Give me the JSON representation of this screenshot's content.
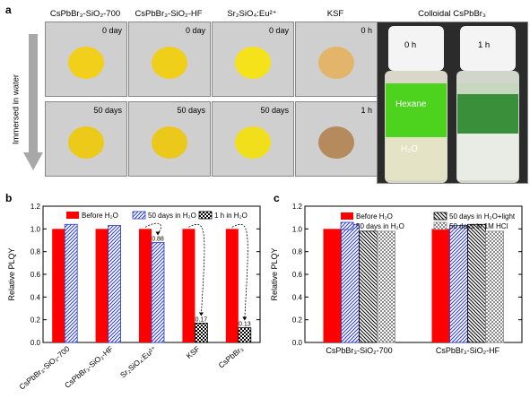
{
  "panels": {
    "a": "a",
    "b": "b",
    "c": "c"
  },
  "photo_grid": {
    "columns": [
      {
        "label": "CsPbBr₃-SiO₂-700",
        "t0": "0 day",
        "t1": "50 days",
        "color0": "#f2cf1a",
        "color1": "#edc91a"
      },
      {
        "label": "CsPbBr₃-SiO₂-HF",
        "t0": "0 day",
        "t1": "50 days",
        "color0": "#f0cf1a",
        "color1": "#ecc81a"
      },
      {
        "label": "Sr₂SiO₄:Eu²⁺",
        "t0": "0 day",
        "t1": "50 days",
        "color0": "#f5e21a",
        "color1": "#f2df1c"
      },
      {
        "label": "KSF",
        "t0": "0 h",
        "t1": "1 h",
        "color0": "#e3b56a",
        "color1": "#b58a5c"
      }
    ],
    "arrow_label": "Immersed in water",
    "colloidal": {
      "label": "Colloidal CsPbBr₃",
      "t0": "0 h",
      "t1": "1 h",
      "hexane": "Hexane",
      "water": "H₂O"
    }
  },
  "chart_data": [
    {
      "type": "bar",
      "ylabel": "Relative PLQY",
      "ylim": [
        0,
        1.2
      ],
      "yticks": [
        0.0,
        0.2,
        0.4,
        0.6,
        0.8,
        1.0,
        1.2
      ],
      "categories": [
        "CsPbBr₃-SiO₂-700",
        "CsPbBr₃-SiO₂-HF",
        "Sr₂SiO₄:Eu²⁺",
        "KSF",
        "CsPbBr₃"
      ],
      "series": [
        {
          "name": "Before H₂O",
          "values": [
            1.0,
            1.0,
            1.0,
            1.0,
            1.0
          ],
          "color": "#ff0000",
          "pattern": "solid"
        },
        {
          "name": "50 days in H₂O",
          "values": [
            1.04,
            1.03,
            0.88,
            null,
            null
          ],
          "color": "#2a3ad0",
          "pattern": "diag"
        },
        {
          "name": "1 h in H₂O",
          "values": [
            null,
            null,
            null,
            0.17,
            0.13
          ],
          "color": "#000000",
          "pattern": "check"
        }
      ],
      "data_labels": [
        "0.88",
        "0.17",
        "0.13"
      ]
    },
    {
      "type": "bar",
      "ylabel": "Relative PLQY",
      "ylim": [
        0,
        1.2
      ],
      "yticks": [
        0.0,
        0.2,
        0.4,
        0.6,
        0.8,
        1.0,
        1.2
      ],
      "categories": [
        "CsPbBr₃-SiO₂-700",
        "CsPbBr₃-SiO₂-HF"
      ],
      "series": [
        {
          "name": "Before H₂O",
          "values": [
            1.0,
            1.0
          ],
          "color": "#ff0000",
          "pattern": "solid"
        },
        {
          "name": "50 days in H₂O",
          "values": [
            1.04,
            1.03
          ],
          "color": "#2a3ad0",
          "pattern": "diag"
        },
        {
          "name": "50 days in H₂O+light",
          "values": [
            0.98,
            1.04
          ],
          "color": "#000000",
          "pattern": "diagrev"
        },
        {
          "name": "50 days in 1M HCl",
          "values": [
            0.98,
            0.98
          ],
          "color": "#888888",
          "pattern": "check"
        }
      ]
    }
  ]
}
